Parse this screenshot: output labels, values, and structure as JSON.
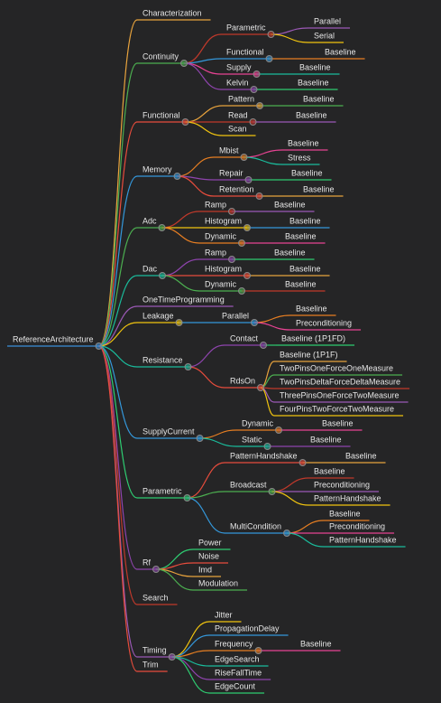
{
  "root": {
    "label": "ReferenceArchitecture",
    "children": [
      {
        "label": "Characterization"
      },
      {
        "label": "Continuity",
        "children": [
          {
            "label": "Parametric",
            "children": [
              {
                "label": "Parallel"
              },
              {
                "label": "Serial"
              }
            ]
          },
          {
            "label": "Functional",
            "children": [
              {
                "label": "Baseline"
              }
            ]
          },
          {
            "label": "Supply",
            "children": [
              {
                "label": "Baseline"
              }
            ]
          },
          {
            "label": "Kelvin",
            "children": [
              {
                "label": "Baseline"
              }
            ]
          }
        ]
      },
      {
        "label": "Functional",
        "children": [
          {
            "label": "Pattern",
            "children": [
              {
                "label": "Baseline"
              }
            ]
          },
          {
            "label": "Read",
            "children": [
              {
                "label": "Baseline"
              }
            ]
          },
          {
            "label": "Scan"
          }
        ]
      },
      {
        "label": "Memory",
        "children": [
          {
            "label": "Mbist",
            "children": [
              {
                "label": "Baseline"
              },
              {
                "label": "Stress"
              }
            ]
          },
          {
            "label": "Repair",
            "children": [
              {
                "label": "Baseline"
              }
            ]
          },
          {
            "label": "Retention",
            "children": [
              {
                "label": "Baseline"
              }
            ]
          }
        ]
      },
      {
        "label": "Adc",
        "children": [
          {
            "label": "Ramp",
            "children": [
              {
                "label": "Baseline"
              }
            ]
          },
          {
            "label": "Histogram",
            "children": [
              {
                "label": "Baseline"
              }
            ]
          },
          {
            "label": "Dynamic",
            "children": [
              {
                "label": "Baseline"
              }
            ]
          }
        ]
      },
      {
        "label": "Dac",
        "children": [
          {
            "label": "Ramp",
            "children": [
              {
                "label": "Baseline"
              }
            ]
          },
          {
            "label": "Histogram",
            "children": [
              {
                "label": "Baseline"
              }
            ]
          },
          {
            "label": "Dynamic",
            "children": [
              {
                "label": "Baseline"
              }
            ]
          }
        ]
      },
      {
        "label": "OneTimeProgramming"
      },
      {
        "label": "Leakage",
        "children": [
          {
            "label": "Parallel",
            "children": [
              {
                "label": "Baseline"
              },
              {
                "label": "Preconditioning"
              }
            ]
          }
        ]
      },
      {
        "label": "Resistance",
        "children": [
          {
            "label": "Contact",
            "children": [
              {
                "label": "Baseline (1P1FD)"
              }
            ]
          },
          {
            "label": "RdsOn",
            "children": [
              {
                "label": "Baseline (1P1F)"
              },
              {
                "label": "TwoPinsOneForceOneMeasure"
              },
              {
                "label": "TwoPinsDeltaForceDeltaMeasure"
              },
              {
                "label": "ThreePinsOneForceTwoMeasure"
              },
              {
                "label": "FourPinsTwoForceTwoMeasure"
              }
            ]
          }
        ]
      },
      {
        "label": "SupplyCurrent",
        "children": [
          {
            "label": "Dynamic",
            "children": [
              {
                "label": "Baseline"
              }
            ]
          },
          {
            "label": "Static",
            "children": [
              {
                "label": "Baseline"
              }
            ]
          }
        ]
      },
      {
        "label": "Parametric",
        "children": [
          {
            "label": "PatternHandshake",
            "children": [
              {
                "label": "Baseline"
              }
            ]
          },
          {
            "label": "Broadcast",
            "children": [
              {
                "label": "Baseline"
              },
              {
                "label": "Preconditioning"
              },
              {
                "label": "PatternHandshake"
              }
            ]
          },
          {
            "label": "MultiCondition",
            "children": [
              {
                "label": "Baseline"
              },
              {
                "label": "Preconditioning"
              },
              {
                "label": "PatternHandshake"
              }
            ]
          }
        ]
      },
      {
        "label": "Rf",
        "children": [
          {
            "label": "Power"
          },
          {
            "label": "Noise"
          },
          {
            "label": "Imd"
          },
          {
            "label": "Modulation"
          }
        ]
      },
      {
        "label": "Search"
      },
      {
        "label": "Timing",
        "children": [
          {
            "label": "Jitter"
          },
          {
            "label": "PropagationDelay"
          },
          {
            "label": "Frequency",
            "children": [
              {
                "label": "Baseline"
              }
            ]
          },
          {
            "label": "EdgeSearch"
          },
          {
            "label": "RiseFallTime"
          },
          {
            "label": "EdgeCount"
          }
        ]
      },
      {
        "label": "Trim"
      }
    ]
  }
}
